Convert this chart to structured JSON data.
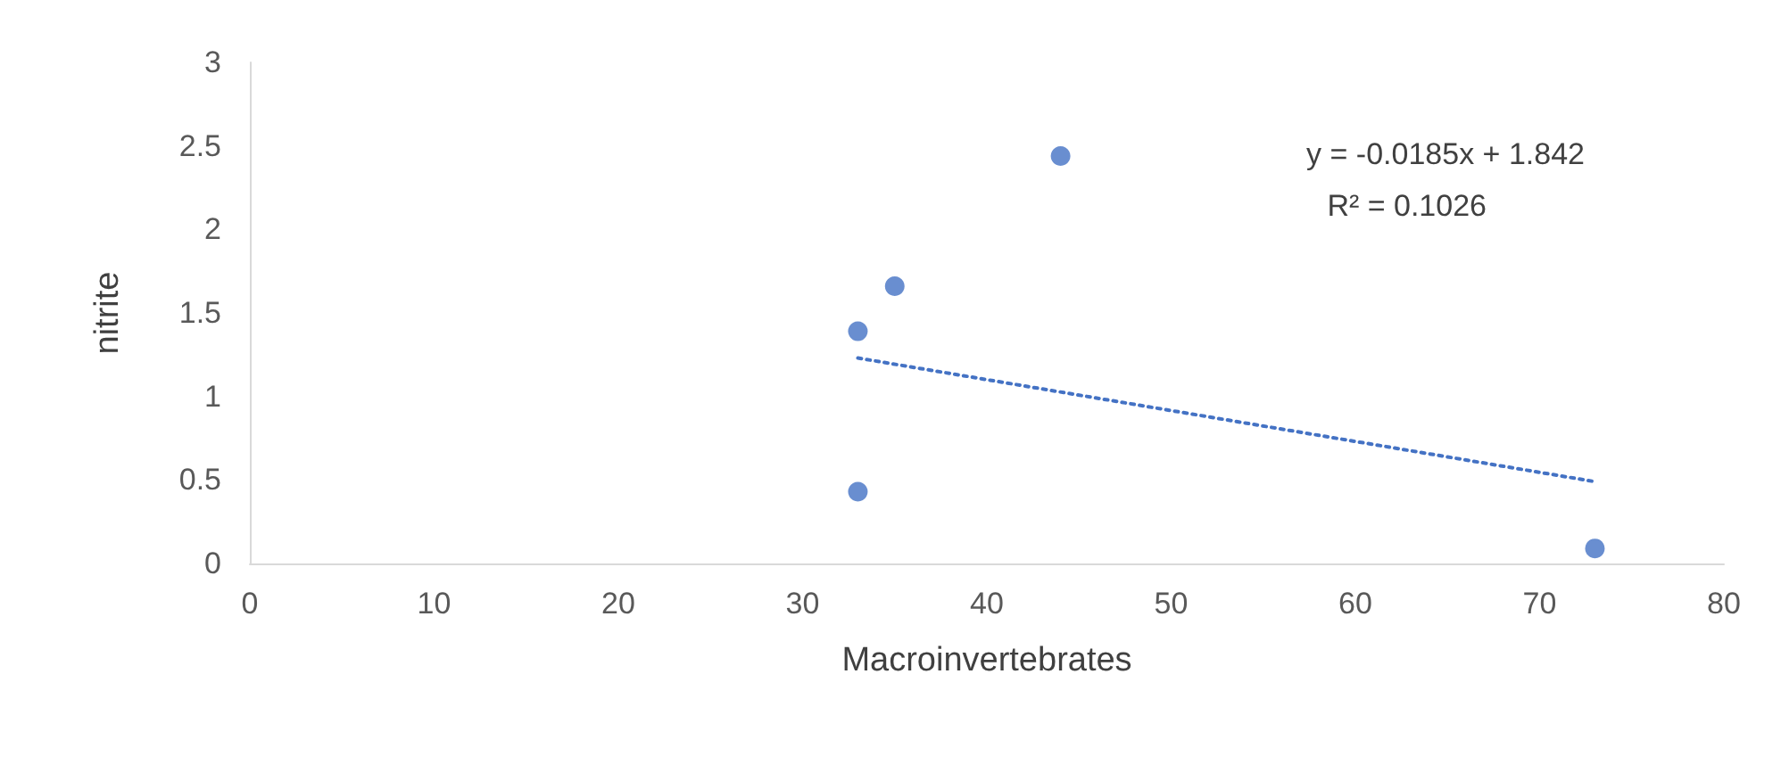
{
  "chart_data": {
    "type": "scatter",
    "xlabel": "Macroinvertebrates",
    "ylabel": "nitrite",
    "xlim": [
      0,
      80
    ],
    "xticks": [
      0,
      10,
      20,
      30,
      40,
      50,
      60,
      70,
      80
    ],
    "ylim": [
      0,
      3
    ],
    "yticks": [
      0,
      0.5,
      1,
      1.5,
      2,
      2.5,
      3
    ],
    "grid": false,
    "series": [
      {
        "color": "#4472c4",
        "marker": "circle",
        "x": [
          33,
          33,
          35,
          44,
          73
        ],
        "values": [
          1.39,
          0.43,
          1.66,
          2.44,
          0.09
        ]
      },
      {
        "type": "line",
        "color": "#4472c4",
        "marker": "none",
        "line_style": "dotted",
        "x": [
          33,
          73
        ],
        "values": [
          1.23,
          0.49
        ]
      }
    ],
    "annotations": [
      "y = -0.0185x + 1.842",
      "R² = 0.1026"
    ]
  }
}
